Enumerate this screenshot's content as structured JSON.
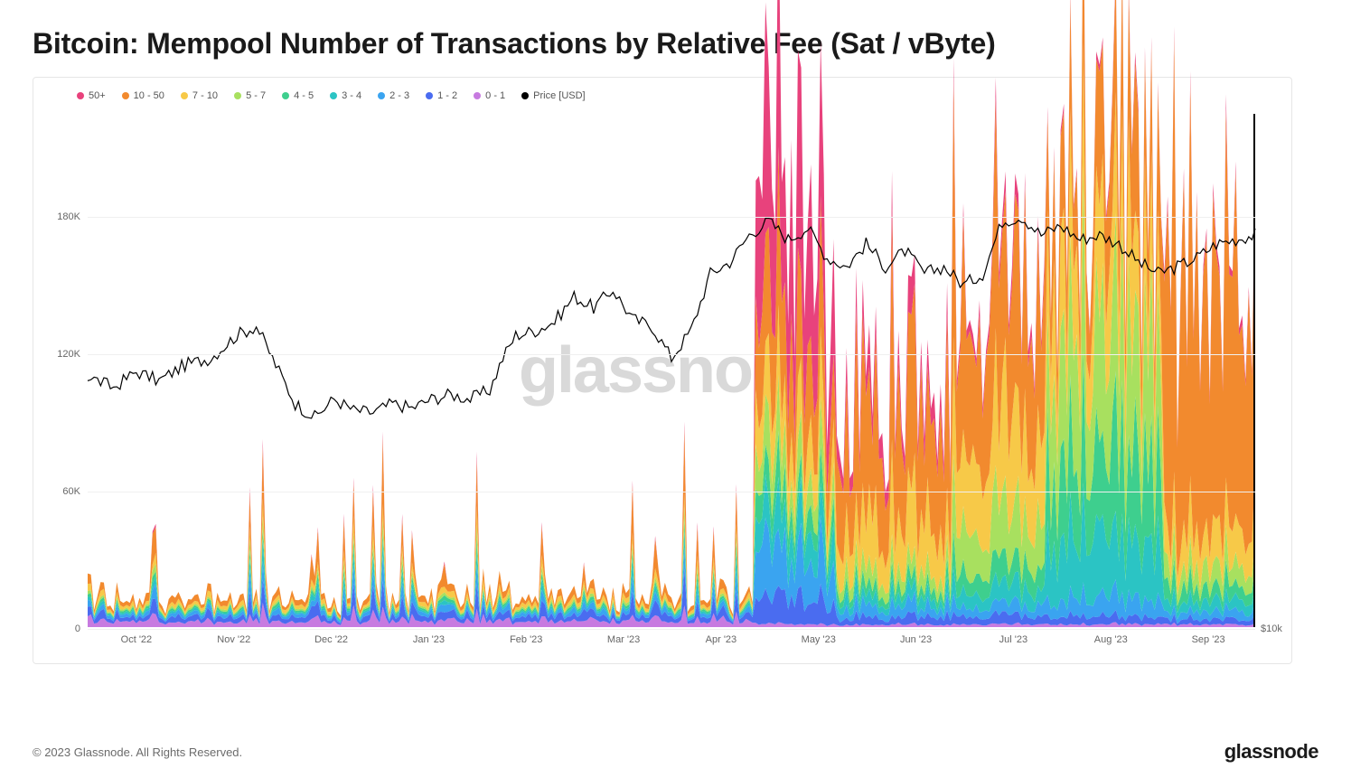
{
  "title": "Bitcoin: Mempool Number of Transactions by Relative Fee (Sat / vByte)",
  "watermark": "glassnode",
  "copyright": "© 2023 Glassnode. All Rights Reserved.",
  "brand": "glassnode",
  "chart": {
    "type": "stacked-area + line",
    "background_color": "#ffffff",
    "border_color": "#e6e6e6",
    "grid_color": "#f0f0f0",
    "axis_font_size": 11,
    "axis_color": "#666666",
    "legend_font_size": 11,
    "y_left": {
      "min": 0,
      "max": 225000,
      "ticks": [
        0,
        60000,
        120000,
        180000
      ],
      "tick_labels": [
        "0",
        "60K",
        "120K",
        "180K"
      ]
    },
    "y_right": {
      "label_at_bottom": "$10k"
    },
    "x_labels": [
      "Oct '22",
      "Nov '22",
      "Dec '22",
      "Jan '23",
      "Feb '23",
      "Mar '23",
      "Apr '23",
      "May '23",
      "Jun '23",
      "Jul '23",
      "Aug '23",
      "Sep '23"
    ],
    "series": [
      {
        "key": "b50",
        "label": "50+",
        "color": "#e8427c"
      },
      {
        "key": "b10",
        "label": "10 - 50",
        "color": "#f28a2e"
      },
      {
        "key": "b7",
        "label": "7 - 10",
        "color": "#f7c948"
      },
      {
        "key": "b5",
        "label": "5 - 7",
        "color": "#a8e05f"
      },
      {
        "key": "b4",
        "label": "4 - 5",
        "color": "#3ecf8e"
      },
      {
        "key": "b3",
        "label": "3 - 4",
        "color": "#2bc4c4"
      },
      {
        "key": "b2",
        "label": "2 - 3",
        "color": "#3aa4f0"
      },
      {
        "key": "b1",
        "label": "1 - 2",
        "color": "#4a6cf0"
      },
      {
        "key": "b0",
        "label": "0 - 1",
        "color": "#c77ae0"
      },
      {
        "key": "price",
        "label": "Price [USD]",
        "color": "#000000"
      }
    ],
    "price_style": {
      "stroke_width": 1.2,
      "color": "#000000"
    },
    "area_stroke_width": 0,
    "n_points": 360,
    "price_line_yrange_k": [
      95,
      185
    ],
    "price_approx": [
      [
        0,
        110
      ],
      [
        8,
        105
      ],
      [
        15,
        112
      ],
      [
        22,
        108
      ],
      [
        30,
        115
      ],
      [
        38,
        118
      ],
      [
        46,
        128
      ],
      [
        52,
        132
      ],
      [
        58,
        115
      ],
      [
        64,
        98
      ],
      [
        70,
        92
      ],
      [
        76,
        100
      ],
      [
        82,
        95
      ],
      [
        88,
        94
      ],
      [
        94,
        98
      ],
      [
        100,
        96
      ],
      [
        106,
        100
      ],
      [
        112,
        102
      ],
      [
        118,
        100
      ],
      [
        124,
        104
      ],
      [
        128,
        118
      ],
      [
        132,
        128
      ],
      [
        138,
        130
      ],
      [
        144,
        134
      ],
      [
        150,
        145
      ],
      [
        156,
        140
      ],
      [
        162,
        148
      ],
      [
        168,
        135
      ],
      [
        174,
        132
      ],
      [
        180,
        118
      ],
      [
        186,
        130
      ],
      [
        192,
        155
      ],
      [
        198,
        160
      ],
      [
        204,
        172
      ],
      [
        210,
        178
      ],
      [
        216,
        170
      ],
      [
        222,
        175
      ],
      [
        228,
        162
      ],
      [
        234,
        158
      ],
      [
        240,
        168
      ],
      [
        246,
        158
      ],
      [
        252,
        165
      ],
      [
        258,
        155
      ],
      [
        264,
        158
      ],
      [
        270,
        150
      ],
      [
        276,
        155
      ],
      [
        282,
        178
      ],
      [
        288,
        180
      ],
      [
        294,
        172
      ],
      [
        300,
        176
      ],
      [
        306,
        170
      ],
      [
        312,
        172
      ],
      [
        318,
        168
      ],
      [
        324,
        160
      ],
      [
        330,
        155
      ],
      [
        336,
        158
      ],
      [
        342,
        162
      ],
      [
        348,
        168
      ],
      [
        354,
        170
      ],
      [
        360,
        172
      ]
    ],
    "stack_templates": {
      "low": {
        "b0": 3,
        "b1": 3,
        "b2": 2,
        "b3": 1,
        "b4": 1,
        "b5": 1,
        "b7": 2,
        "b10": 3,
        "b50": 0
      },
      "spike": {
        "b0": 4,
        "b1": 5,
        "b2": 4,
        "b3": 3,
        "b4": 2,
        "b5": 2,
        "b7": 3,
        "b10": 10,
        "b50": 1
      },
      "mid": {
        "b0": 2,
        "b1": 3,
        "b2": 3,
        "b3": 3,
        "b4": 3,
        "b5": 3,
        "b7": 3,
        "b10": 4,
        "b50": 0
      },
      "may": {
        "b0": 1,
        "b1": 8,
        "b2": 14,
        "b3": 10,
        "b4": 8,
        "b5": 10,
        "b7": 14,
        "b10": 30,
        "b50": 45
      },
      "jun": {
        "b0": 1,
        "b1": 3,
        "b2": 4,
        "b3": 4,
        "b4": 4,
        "b5": 6,
        "b7": 18,
        "b10": 45,
        "b50": 10
      },
      "jul": {
        "b0": 1,
        "b1": 3,
        "b2": 4,
        "b3": 6,
        "b4": 8,
        "b5": 18,
        "b7": 30,
        "b10": 55,
        "b50": 5
      },
      "aug": {
        "b0": 1,
        "b1": 3,
        "b2": 6,
        "b3": 22,
        "b4": 30,
        "b5": 40,
        "b7": 30,
        "b10": 35,
        "b50": 2
      },
      "sep": {
        "b0": 1,
        "b1": 2,
        "b2": 3,
        "b3": 4,
        "b4": 6,
        "b5": 8,
        "b7": 14,
        "b10": 95,
        "b50": 3
      }
    }
  }
}
